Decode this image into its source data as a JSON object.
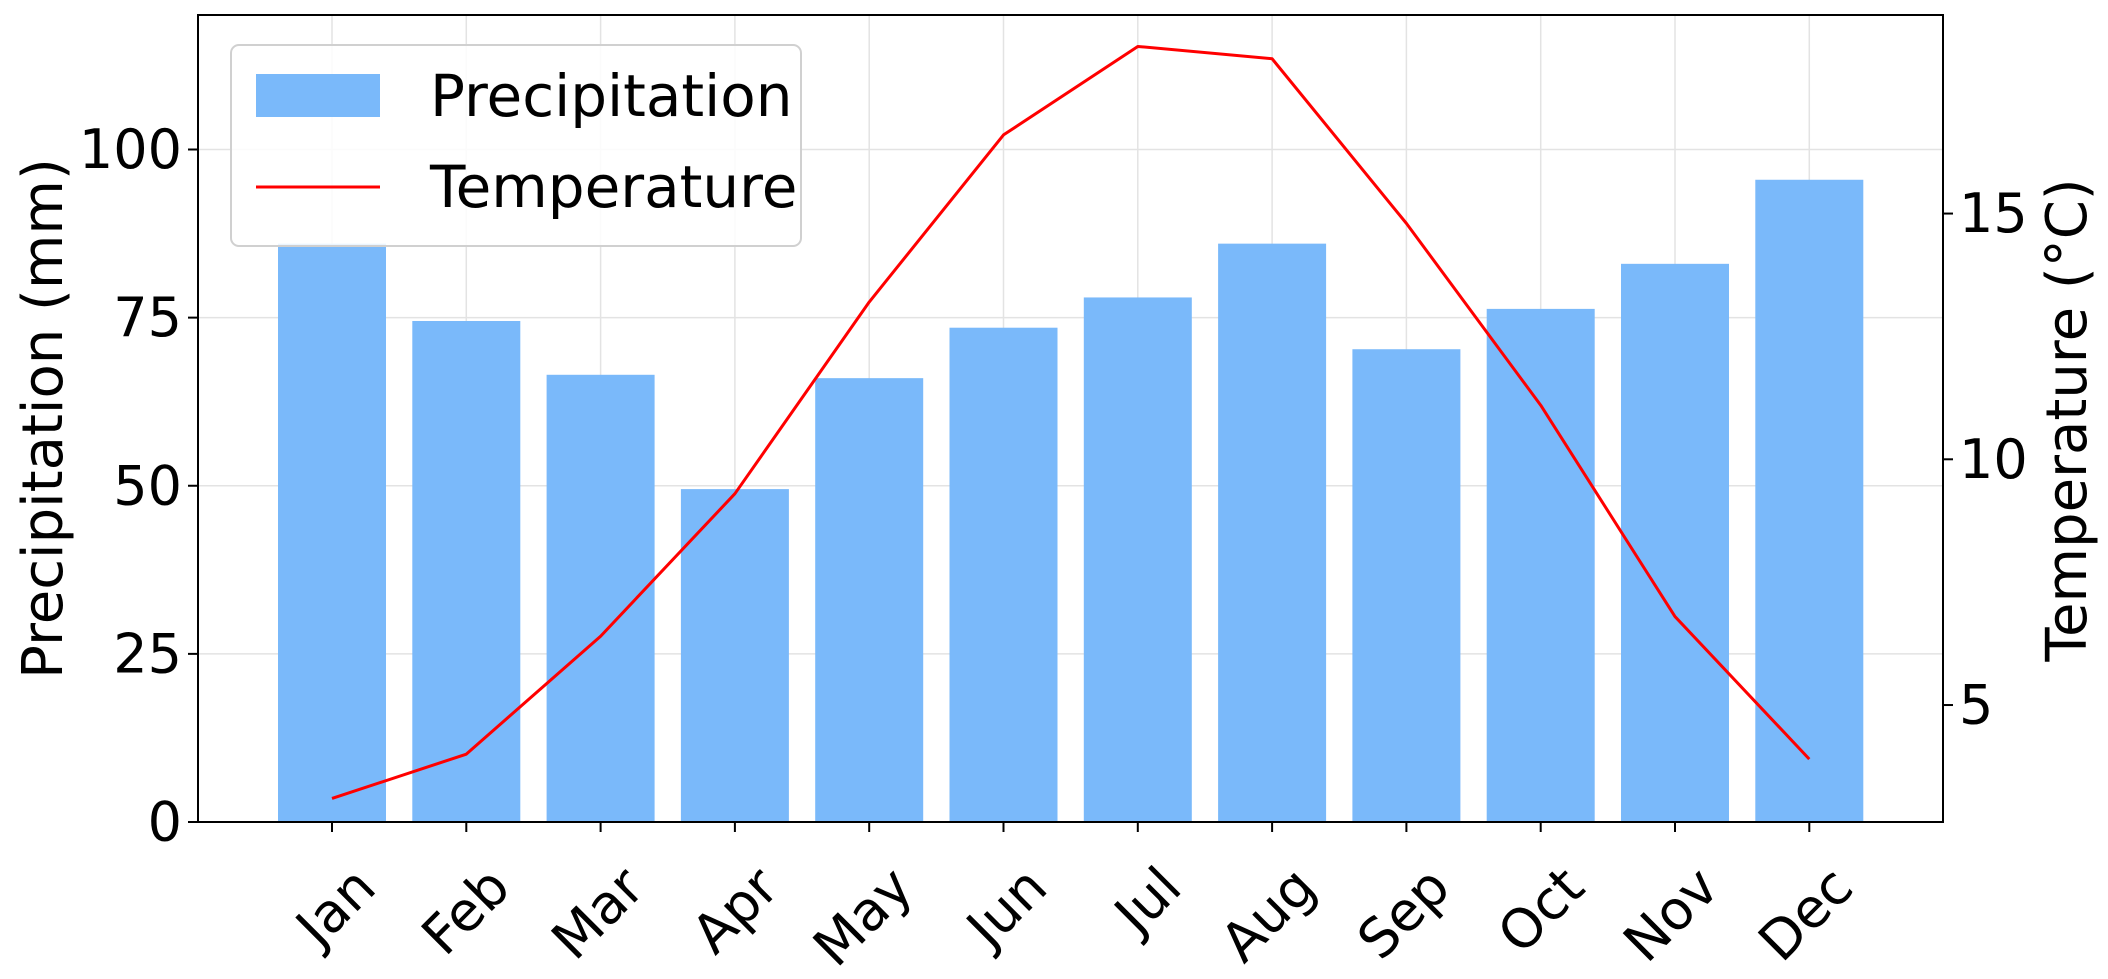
{
  "chart_data": {
    "type": "bar",
    "categories": [
      "Jan",
      "Feb",
      "Mar",
      "Apr",
      "May",
      "Jun",
      "Jul",
      "Aug",
      "Sep",
      "Oct",
      "Nov",
      "Dec"
    ],
    "series": [
      {
        "name": "Precipitation",
        "type": "bar",
        "axis": "left",
        "color": "#7ab9fa",
        "values": [
          86,
          74.5,
          66.5,
          49.5,
          66,
          73.5,
          78,
          86,
          70.3,
          76.3,
          83,
          95.5
        ]
      },
      {
        "name": "Temperature",
        "type": "line",
        "axis": "right",
        "color": "#ff0000",
        "values": [
          3.1,
          4.0,
          6.4,
          9.3,
          13.2,
          16.6,
          18.4,
          18.15,
          14.8,
          11.1,
          6.8,
          3.9
        ]
      }
    ],
    "ylabel": "Precipitation (mm)",
    "ylim": [
      0,
      120
    ],
    "yticks": [
      0,
      25,
      50,
      75,
      100
    ],
    "y2label": "Temperature (°C)",
    "y2lim": [
      2.62,
      19.04
    ],
    "y2ticks": [
      5,
      10,
      15
    ],
    "xlabel": "",
    "title": "",
    "grid": true,
    "legend": "top-left"
  }
}
